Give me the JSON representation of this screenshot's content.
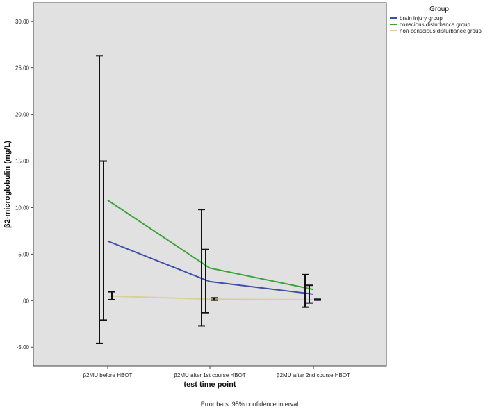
{
  "chart_data": {
    "type": "line",
    "xlabel": "test time point",
    "ylabel": "β2-microglobulin (mg/L)",
    "categories": [
      "β2MU before HBOT",
      "β2MU after 1st course HBOT",
      "β2MU after 2nd course HBOT"
    ],
    "ylim": [
      -7.0,
      32.0
    ],
    "yticks": [
      -5.0,
      0.0,
      5.0,
      10.0,
      15.0,
      20.0,
      25.0,
      30.0
    ],
    "ytick_labels": [
      "-5.00",
      ".00",
      "5.00",
      "10.00",
      "15.00",
      "20.00",
      "25.00",
      "30.00"
    ],
    "grid": false,
    "legend": {
      "title": "Group",
      "placement": "top-right, outside plot"
    },
    "footnote": "Error bars: 95% confidence interval",
    "series": [
      {
        "name": "brain injury group",
        "color": "#3f4ea6",
        "values": [
          6.4,
          2.05,
          0.7
        ],
        "ci_low": [
          -4.6,
          -2.7,
          -0.7
        ],
        "ci_high": [
          26.3,
          9.8,
          2.8
        ]
      },
      {
        "name": "conscious disturbance group",
        "color": "#3aa33a",
        "values": [
          10.8,
          3.5,
          1.2
        ],
        "ci_low": [
          -2.1,
          -1.3,
          -0.25
        ],
        "ci_high": [
          15.0,
          5.5,
          1.65
        ]
      },
      {
        "name": "non-conscious disturbance group",
        "color": "#d8cf9f",
        "values": [
          0.5,
          0.15,
          0.1
        ],
        "ci_low": [
          0.1,
          0.05,
          0.05
        ],
        "ci_high": [
          0.95,
          0.3,
          0.15
        ]
      }
    ]
  }
}
